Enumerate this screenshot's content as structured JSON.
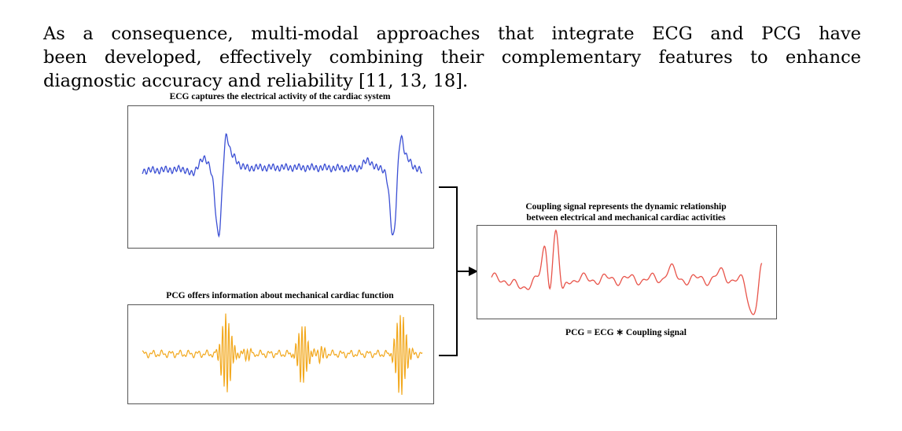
{
  "paragraph": {
    "line1": "As a consequence, multi-modal approaches that integrate ECG and PCG have",
    "line2": "been developed, effectively combining their complementary features to enhance",
    "line3": "diagnostic accuracy and reliability [11, 13, 18]."
  },
  "figure": {
    "ecg_caption": "ECG captures the electrical activity of the cardiac system",
    "pcg_caption": "PCG offers information about mechanical cardiac function",
    "coupling_caption_line1": "Coupling signal represents the dynamic relationship",
    "coupling_caption_line2": "between electrical and mechanical cardiac activities",
    "equation": "PCG = ECG ∗ Coupling signal",
    "colors": {
      "ecg": "#3b4fd4",
      "pcg": "#f2a81d",
      "coupling": "#e8544a",
      "frame": "#555555",
      "arrow": "#000000"
    }
  }
}
